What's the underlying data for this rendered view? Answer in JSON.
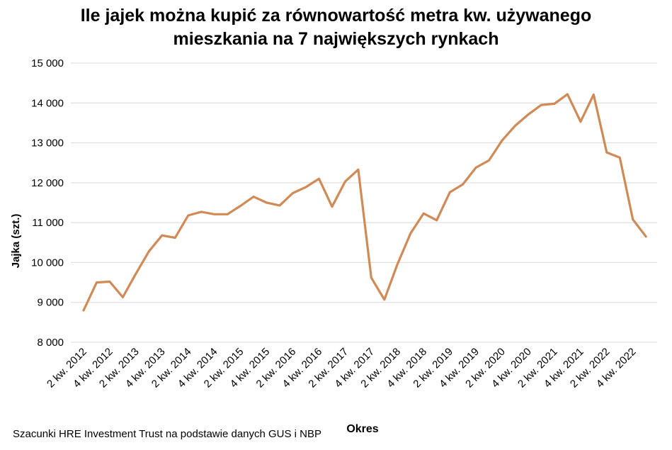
{
  "chart_data": {
    "type": "line",
    "title_lines": [
      "Ile jajek można kupić za równowartość metra kw. używanego",
      "mieszkania na 7 największych rynkach"
    ],
    "xlabel": "Okres",
    "ylabel": "Jajka (szt.)",
    "ylim": [
      8000,
      15000
    ],
    "yticks": [
      8000,
      9000,
      10000,
      11000,
      12000,
      13000,
      14000,
      15000
    ],
    "ytick_labels": [
      "8 000",
      "9 000",
      "10 000",
      "11 000",
      "12 000",
      "13 000",
      "14 000",
      "15 000"
    ],
    "grid": true,
    "legend": "none",
    "color": "#D08A56",
    "categories": [
      "2 kw. 2012",
      "3 kw. 2012",
      "4 kw. 2012",
      "1 kw. 2013",
      "2 kw. 2013",
      "3 kw. 2013",
      "4 kw. 2013",
      "1 kw. 2014",
      "2 kw. 2014",
      "3 kw. 2014",
      "4 kw. 2014",
      "1 kw. 2015",
      "2 kw. 2015",
      "3 kw. 2015",
      "4 kw. 2015",
      "1 kw. 2016",
      "2 kw. 2016",
      "3 kw. 2016",
      "4 kw. 2016",
      "1 kw. 2017",
      "2 kw. 2017",
      "3 kw. 2017",
      "4 kw. 2017",
      "1 kw. 2018",
      "2 kw. 2018",
      "3 kw. 2018",
      "4 kw. 2018",
      "1 kw. 2019",
      "2 kw. 2019",
      "3 kw. 2019",
      "4 kw. 2019",
      "1 kw. 2020",
      "2 kw. 2020",
      "3 kw. 2020",
      "4 kw. 2020",
      "1 kw. 2021",
      "2 kw. 2021",
      "3 kw. 2021",
      "4 kw. 2021",
      "1 kw. 2022",
      "2 kw. 2022",
      "3 kw. 2022",
      "4 kw. 2022",
      "1 kw. 2023"
    ],
    "visible_tick_labels": [
      "2 kw. 2012",
      "4 kw. 2012",
      "2 kw. 2013",
      "4 kw. 2013",
      "2 kw. 2014",
      "4 kw. 2014",
      "2 kw. 2015",
      "4 kw. 2015",
      "2 kw. 2016",
      "4 kw. 2016",
      "2 kw. 2017",
      "4 kw. 2017",
      "2 kw. 2018",
      "4 kw. 2018",
      "2 kw. 2019",
      "4 kw. 2019",
      "2 kw. 2020",
      "4 kw. 2020",
      "2 kw. 2021",
      "4 kw. 2021",
      "2 kw. 2022",
      "4 kw. 2022"
    ],
    "values": [
      8800,
      9500,
      9520,
      9130,
      9720,
      10280,
      10680,
      10620,
      11180,
      11270,
      11210,
      11210,
      11420,
      11650,
      11500,
      11430,
      11740,
      11890,
      12100,
      11400,
      12030,
      12330,
      9620,
      9070,
      9960,
      10730,
      11230,
      11060,
      11760,
      11960,
      12380,
      12560,
      13060,
      13430,
      13710,
      13950,
      13980,
      14220,
      13530,
      14210,
      12760,
      12630,
      11080,
      10650
    ]
  },
  "footer": {
    "source": "Szacunki HRE Investment Trust na podstawie danych GUS i NBP"
  }
}
